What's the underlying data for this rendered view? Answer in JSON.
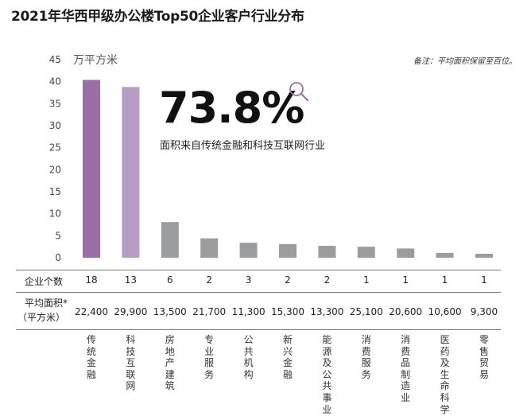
{
  "title": "2021年华西甲级办公楼Top50企业客户行业分布",
  "note": "备注：平均面积保留至百位。",
  "unit_label": "万平方米",
  "highlight": {
    "value": "73.8%",
    "caption": "面积来自传统金融和科技互联网行业"
  },
  "icons": {
    "magnifier": "search-icon"
  },
  "colors": {
    "primary": "#9b6ea8",
    "secondary": "#b79cc4",
    "gray": "#9b9c9e"
  },
  "rows": {
    "count_label": "企业个数",
    "area_label_line1": "平均面积*",
    "area_label_line2": "（平方米）",
    "counts": [
      "18",
      "13",
      "6",
      "2",
      "3",
      "2",
      "2",
      "1",
      "1",
      "1",
      "1"
    ],
    "avg_areas": [
      "22,400",
      "29,900",
      "13,500",
      "21,700",
      "11,300",
      "15,300",
      "13,300",
      "25,100",
      "20,600",
      "10,600",
      "9,300"
    ]
  },
  "chart_data": {
    "type": "bar",
    "categories": [
      "传统金融",
      "科技互联网",
      "房地产建筑",
      "专业服务",
      "公共机构",
      "新兴金融",
      "能源及公共事业",
      "消费服务",
      "消费品制造业",
      "医药及生命科学",
      "零售贸易"
    ],
    "values": [
      40.4,
      38.8,
      8.1,
      4.4,
      3.4,
      3.1,
      2.7,
      2.5,
      2.1,
      1.1,
      0.9
    ],
    "bar_colors": [
      "#9b6ea8",
      "#b79cc4",
      "#9b9c9e",
      "#9b9c9e",
      "#9b9c9e",
      "#9b9c9e",
      "#9b9c9e",
      "#9b9c9e",
      "#9b9c9e",
      "#9b9c9e",
      "#9b9c9e"
    ],
    "ylabel": "万平方米",
    "ylim": [
      0,
      45
    ],
    "yticks": [
      0,
      5,
      10,
      15,
      20,
      25,
      30,
      35,
      40,
      45
    ],
    "grid": false
  }
}
